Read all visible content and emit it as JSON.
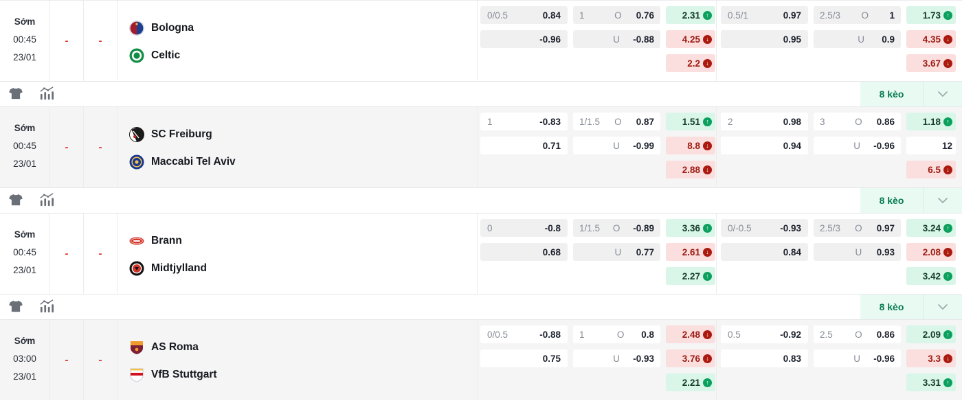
{
  "labels": {
    "over": "O",
    "under": "U",
    "keo": "8 kèo"
  },
  "colors": {
    "accent_green": "#077a53",
    "mint_bg": "#e9faf3",
    "odds_up_bg": "#d9f6e8",
    "odds_up_icon": "#0ba05e",
    "odds_down_bg": "#fbdede",
    "odds_down_icon": "#ab1a0f",
    "score_dash_red": "#e2372c"
  },
  "matches": [
    {
      "status": "Sớm",
      "time": "00:45",
      "date": "23/01",
      "score_home": "-",
      "score_away": "-",
      "home": "Bologna",
      "away": "Celtic",
      "odds": {
        "left": {
          "hc": {
            "line": "0/0.5",
            "home": "0.84",
            "away": "-0.96"
          },
          "ou": {
            "line": "1",
            "over": "0.76",
            "under": "-0.88"
          },
          "x12": [
            {
              "value": "2.31",
              "trend": "up"
            },
            {
              "value": "4.25",
              "trend": "down"
            },
            {
              "value": "2.2",
              "trend": "down"
            }
          ]
        },
        "right": {
          "hc": {
            "line": "0.5/1",
            "home": "0.97",
            "away": "0.95"
          },
          "ou": {
            "line": "2.5/3",
            "over": "1",
            "under": "0.9"
          },
          "x12": [
            {
              "value": "1.73",
              "trend": "up"
            },
            {
              "value": "4.35",
              "trend": "down"
            },
            {
              "value": "3.67",
              "trend": "down"
            }
          ]
        }
      }
    },
    {
      "status": "Sớm",
      "time": "00:45",
      "date": "23/01",
      "score_home": "-",
      "score_away": "-",
      "home": "SC Freiburg",
      "away": "Maccabi Tel Aviv",
      "odds": {
        "left": {
          "hc": {
            "line": "1",
            "home": "-0.83",
            "away": "0.71"
          },
          "ou": {
            "line": "1/1.5",
            "over": "0.87",
            "under": "-0.99"
          },
          "x12": [
            {
              "value": "1.51",
              "trend": "up"
            },
            {
              "value": "8.8",
              "trend": "down"
            },
            {
              "value": "2.88",
              "trend": "down"
            }
          ]
        },
        "right": {
          "hc": {
            "line": "2",
            "home": "0.98",
            "away": "0.94"
          },
          "ou": {
            "line": "3",
            "over": "0.86",
            "under": "-0.96"
          },
          "x12": [
            {
              "value": "1.18",
              "trend": "up"
            },
            {
              "value": "12",
              "trend": "none"
            },
            {
              "value": "6.5",
              "trend": "down"
            }
          ]
        }
      }
    },
    {
      "status": "Sớm",
      "time": "00:45",
      "date": "23/01",
      "score_home": "-",
      "score_away": "-",
      "home": "Brann",
      "away": "Midtjylland",
      "odds": {
        "left": {
          "hc": {
            "line": "0",
            "home": "-0.8",
            "away": "0.68"
          },
          "ou": {
            "line": "1/1.5",
            "over": "-0.89",
            "under": "0.77"
          },
          "x12": [
            {
              "value": "3.36",
              "trend": "up"
            },
            {
              "value": "2.61",
              "trend": "down"
            },
            {
              "value": "2.27",
              "trend": "up"
            }
          ]
        },
        "right": {
          "hc": {
            "line": "0/-0.5",
            "home": "-0.93",
            "away": "0.84"
          },
          "ou": {
            "line": "2.5/3",
            "over": "0.97",
            "under": "0.93"
          },
          "x12": [
            {
              "value": "3.24",
              "trend": "up"
            },
            {
              "value": "2.08",
              "trend": "down"
            },
            {
              "value": "3.42",
              "trend": "up"
            }
          ]
        }
      }
    },
    {
      "status": "Sớm",
      "time": "03:00",
      "date": "23/01",
      "score_home": "-",
      "score_away": "-",
      "home": "AS Roma",
      "away": "VfB Stuttgart",
      "odds": {
        "left": {
          "hc": {
            "line": "0/0.5",
            "home": "-0.88",
            "away": "0.75"
          },
          "ou": {
            "line": "1",
            "over": "0.8",
            "under": "-0.93"
          },
          "x12": [
            {
              "value": "2.48",
              "trend": "down"
            },
            {
              "value": "3.76",
              "trend": "down"
            },
            {
              "value": "2.21",
              "trend": "up"
            }
          ]
        },
        "right": {
          "hc": {
            "line": "0.5",
            "home": "-0.92",
            "away": "0.83"
          },
          "ou": {
            "line": "2.5",
            "over": "0.86",
            "under": "-0.96"
          },
          "x12": [
            {
              "value": "2.09",
              "trend": "up"
            },
            {
              "value": "3.3",
              "trend": "down"
            },
            {
              "value": "3.31",
              "trend": "up"
            }
          ]
        }
      }
    }
  ]
}
